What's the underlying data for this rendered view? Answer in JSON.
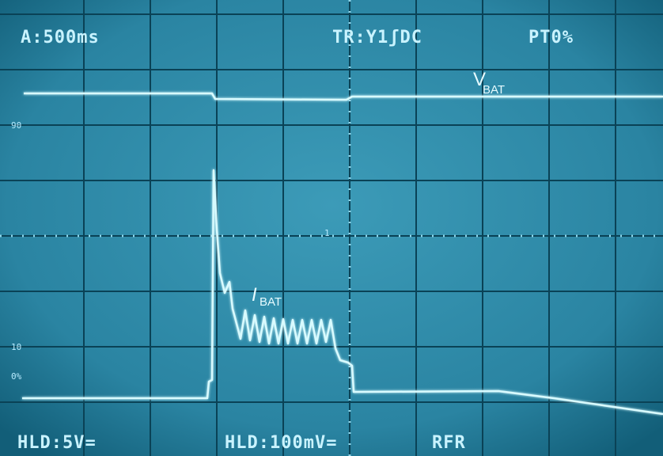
{
  "screen": {
    "timebase": "A:500ms",
    "trigger": "TR:Y1ʃDC",
    "pretrigger": "PT0%",
    "channel1": "HLD:5V=",
    "channel2": "HLD:100mV=",
    "mode": "RFR",
    "ref_90": "90",
    "ref_10": "10",
    "ref_0": "0%",
    "marker": "1"
  },
  "traces": {
    "vbat": {
      "symbol": "V",
      "subscript": "BAT"
    },
    "ibat": {
      "symbol": "I",
      "subscript": "BAT"
    }
  }
}
